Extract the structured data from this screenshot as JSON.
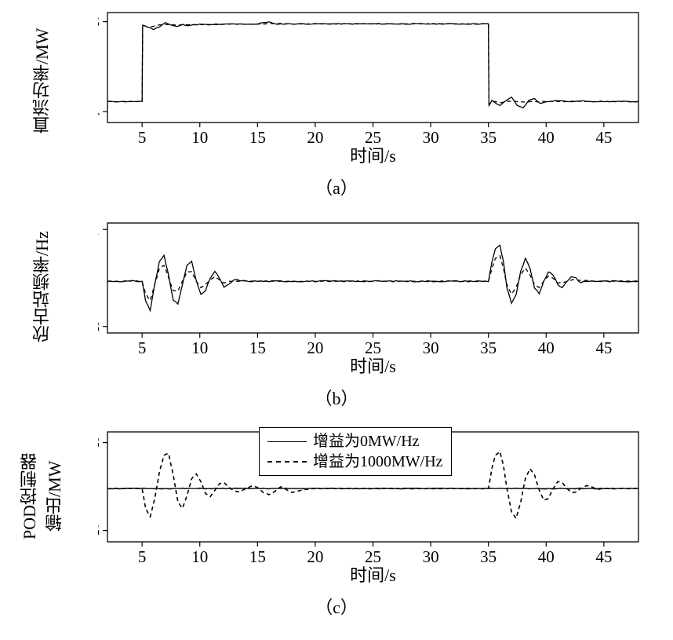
{
  "global": {
    "xaxis": {
      "label": "时间/s",
      "ticks": [
        5,
        10,
        15,
        20,
        25,
        30,
        35,
        40,
        45
      ],
      "xlim": [
        2,
        48
      ]
    },
    "line_color": "#000000",
    "axis_color": "#000000",
    "background": "#ffffff",
    "axis_linewidth": 1.3,
    "tick_fontsize": 21,
    "label_fontsize": 22
  },
  "panel_a": {
    "sublabel": "（a）",
    "ylabel": "直流功率/MW",
    "ylim": [
      100,
      1150
    ],
    "yticks": [
      204,
      1063
    ],
    "ytick_labels": [
      "204",
      "1063"
    ],
    "series_solid": {
      "name": "增益为0MW/Hz",
      "color": "#000000",
      "linewidth": 1.3,
      "xy": [
        [
          2,
          300
        ],
        [
          4.8,
          300
        ],
        [
          5,
          300
        ],
        [
          5.05,
          1030
        ],
        [
          5.3,
          1020
        ],
        [
          6,
          990
        ],
        [
          6.5,
          1015
        ],
        [
          7,
          1055
        ],
        [
          7.5,
          1030
        ],
        [
          8,
          1015
        ],
        [
          8.5,
          1035
        ],
        [
          9,
          1028
        ],
        [
          10,
          1038
        ],
        [
          11,
          1032
        ],
        [
          12,
          1038
        ],
        [
          13,
          1040
        ],
        [
          14,
          1040
        ],
        [
          15,
          1040
        ],
        [
          15.5,
          1055
        ],
        [
          16,
          1060
        ],
        [
          16.5,
          1040
        ],
        [
          18,
          1042
        ],
        [
          20,
          1042
        ],
        [
          25,
          1042
        ],
        [
          30,
          1042
        ],
        [
          34.9,
          1042
        ],
        [
          35,
          1042
        ],
        [
          35.05,
          260
        ],
        [
          35.3,
          310
        ],
        [
          36,
          260
        ],
        [
          36.5,
          310
        ],
        [
          37,
          340
        ],
        [
          37.5,
          260
        ],
        [
          38,
          240
        ],
        [
          38.5,
          310
        ],
        [
          39,
          330
        ],
        [
          39.5,
          280
        ],
        [
          40,
          300
        ],
        [
          41,
          310
        ],
        [
          42,
          300
        ],
        [
          43,
          305
        ],
        [
          45,
          300
        ],
        [
          48,
          300
        ]
      ]
    },
    "series_dashed": {
      "name": "增益为1000MW/Hz",
      "color": "#000000",
      "linewidth": 1.3,
      "dash": "5,4",
      "xy": [
        [
          2,
          300
        ],
        [
          4.8,
          300
        ],
        [
          5,
          300
        ],
        [
          5.05,
          1030
        ],
        [
          5.5,
          1010
        ],
        [
          6,
          1020
        ],
        [
          6.5,
          1030
        ],
        [
          7,
          1035
        ],
        [
          8,
          1030
        ],
        [
          9,
          1035
        ],
        [
          10,
          1035
        ],
        [
          12,
          1040
        ],
        [
          15,
          1040
        ],
        [
          16,
          1045
        ],
        [
          18,
          1042
        ],
        [
          25,
          1042
        ],
        [
          30,
          1042
        ],
        [
          34.9,
          1042
        ],
        [
          35,
          1042
        ],
        [
          35.05,
          280
        ],
        [
          35.5,
          300
        ],
        [
          36,
          290
        ],
        [
          37,
          305
        ],
        [
          38,
          295
        ],
        [
          39,
          300
        ],
        [
          41,
          300
        ],
        [
          45,
          300
        ],
        [
          48,
          300
        ]
      ]
    }
  },
  "panel_b": {
    "sublabel": "（b）",
    "ylabel": "欣古站频率/Hz",
    "ylim": [
      59.78,
      60.12
    ],
    "yticks": [
      59.8,
      60.1
    ],
    "ytick_labels": [
      "59.8",
      "60.1"
    ],
    "series_solid": {
      "color": "#000000",
      "linewidth": 1.3,
      "xy": [
        [
          2,
          59.94
        ],
        [
          4.5,
          59.94
        ],
        [
          5,
          59.94
        ],
        [
          5.3,
          59.88
        ],
        [
          5.7,
          59.85
        ],
        [
          6.1,
          59.93
        ],
        [
          6.5,
          60.0
        ],
        [
          6.9,
          60.02
        ],
        [
          7.3,
          59.96
        ],
        [
          7.7,
          59.88
        ],
        [
          8.1,
          59.87
        ],
        [
          8.5,
          59.93
        ],
        [
          8.9,
          59.99
        ],
        [
          9.3,
          60.0
        ],
        [
          9.7,
          59.94
        ],
        [
          10.1,
          59.9
        ],
        [
          10.5,
          59.91
        ],
        [
          10.9,
          59.95
        ],
        [
          11.3,
          59.97
        ],
        [
          11.7,
          59.95
        ],
        [
          12.1,
          59.92
        ],
        [
          12.5,
          59.93
        ],
        [
          13,
          59.945
        ],
        [
          14,
          59.94
        ],
        [
          15,
          59.94
        ],
        [
          16,
          59.94
        ],
        [
          18,
          59.94
        ],
        [
          22,
          59.94
        ],
        [
          28,
          59.94
        ],
        [
          34,
          59.94
        ],
        [
          35,
          59.94
        ],
        [
          35.3,
          60.0
        ],
        [
          35.6,
          60.04
        ],
        [
          36,
          60.05
        ],
        [
          36.3,
          60.0
        ],
        [
          36.6,
          59.92
        ],
        [
          37,
          59.87
        ],
        [
          37.4,
          59.9
        ],
        [
          37.8,
          59.97
        ],
        [
          38.2,
          60.01
        ],
        [
          38.6,
          59.98
        ],
        [
          39,
          59.92
        ],
        [
          39.4,
          59.9
        ],
        [
          39.8,
          59.94
        ],
        [
          40.2,
          59.97
        ],
        [
          40.6,
          59.96
        ],
        [
          41,
          59.93
        ],
        [
          41.4,
          59.92
        ],
        [
          41.8,
          59.94
        ],
        [
          42.2,
          59.955
        ],
        [
          42.6,
          59.95
        ],
        [
          43,
          59.935
        ],
        [
          43.5,
          59.94
        ],
        [
          44.5,
          59.94
        ],
        [
          46,
          59.94
        ],
        [
          48,
          59.94
        ]
      ]
    },
    "series_dashed": {
      "color": "#000000",
      "linewidth": 1.3,
      "dash": "5,4",
      "xy": [
        [
          2,
          59.94
        ],
        [
          4.5,
          59.94
        ],
        [
          5,
          59.94
        ],
        [
          5.3,
          59.9
        ],
        [
          5.7,
          59.88
        ],
        [
          6.1,
          59.93
        ],
        [
          6.5,
          59.98
        ],
        [
          6.9,
          59.99
        ],
        [
          7.3,
          59.95
        ],
        [
          7.7,
          59.91
        ],
        [
          8.1,
          59.91
        ],
        [
          8.5,
          59.94
        ],
        [
          8.9,
          59.97
        ],
        [
          9.3,
          59.97
        ],
        [
          9.7,
          59.94
        ],
        [
          10.1,
          59.92
        ],
        [
          10.5,
          59.93
        ],
        [
          10.9,
          59.945
        ],
        [
          11.3,
          59.955
        ],
        [
          11.7,
          59.945
        ],
        [
          12.1,
          59.935
        ],
        [
          12.5,
          59.94
        ],
        [
          14,
          59.94
        ],
        [
          18,
          59.94
        ],
        [
          25,
          59.94
        ],
        [
          34,
          59.94
        ],
        [
          35,
          59.94
        ],
        [
          35.3,
          59.98
        ],
        [
          35.6,
          60.01
        ],
        [
          36,
          60.02
        ],
        [
          36.3,
          59.98
        ],
        [
          36.6,
          59.93
        ],
        [
          37,
          59.9
        ],
        [
          37.4,
          59.92
        ],
        [
          37.8,
          59.96
        ],
        [
          38.2,
          59.98
        ],
        [
          38.6,
          59.96
        ],
        [
          39,
          59.93
        ],
        [
          39.4,
          59.92
        ],
        [
          39.8,
          59.94
        ],
        [
          40.2,
          59.955
        ],
        [
          40.6,
          59.95
        ],
        [
          41,
          59.935
        ],
        [
          41.4,
          59.935
        ],
        [
          41.8,
          59.94
        ],
        [
          42.5,
          59.945
        ],
        [
          44,
          59.94
        ],
        [
          48,
          59.94
        ]
      ]
    }
  },
  "panel_c": {
    "sublabel": "（c）",
    "ylabel": "POD控制器\n输出/MW",
    "ylim": [
      -160,
      170
    ],
    "yticks": [
      -126,
      138
    ],
    "ytick_labels": [
      "−126",
      "138"
    ],
    "zero_line": 0,
    "legend": {
      "solid": "增益为0MW/Hz",
      "dashed": "增益为1000MW/Hz"
    },
    "series_solid": {
      "color": "#000000",
      "linewidth": 1.3,
      "xy": [
        [
          2,
          0
        ],
        [
          48,
          0
        ]
      ]
    },
    "series_dashed": {
      "color": "#000000",
      "linewidth": 1.6,
      "dash": "5,4",
      "xy": [
        [
          2,
          0
        ],
        [
          4.8,
          0
        ],
        [
          5,
          0
        ],
        [
          5.3,
          -60
        ],
        [
          5.7,
          -85
        ],
        [
          6.1,
          -30
        ],
        [
          6.5,
          50
        ],
        [
          6.9,
          100
        ],
        [
          7.3,
          105
        ],
        [
          7.7,
          40
        ],
        [
          8.1,
          -40
        ],
        [
          8.5,
          -60
        ],
        [
          8.9,
          -20
        ],
        [
          9.3,
          30
        ],
        [
          9.7,
          45
        ],
        [
          10.1,
          20
        ],
        [
          10.5,
          -15
        ],
        [
          10.9,
          -25
        ],
        [
          11.3,
          -5
        ],
        [
          11.7,
          15
        ],
        [
          12.1,
          18
        ],
        [
          12.5,
          5
        ],
        [
          13,
          -8
        ],
        [
          13.5,
          -10
        ],
        [
          14,
          0
        ],
        [
          14.5,
          8
        ],
        [
          15,
          3
        ],
        [
          15.5,
          -12
        ],
        [
          16,
          -18
        ],
        [
          16.5,
          -8
        ],
        [
          17,
          5
        ],
        [
          17.5,
          -3
        ],
        [
          18,
          -12
        ],
        [
          18.5,
          -8
        ],
        [
          19,
          -4
        ],
        [
          19.5,
          -2
        ],
        [
          20,
          0
        ],
        [
          22,
          0
        ],
        [
          26,
          0
        ],
        [
          30,
          0
        ],
        [
          34.8,
          0
        ],
        [
          35,
          0
        ],
        [
          35.3,
          60
        ],
        [
          35.6,
          100
        ],
        [
          36,
          110
        ],
        [
          36.3,
          70
        ],
        [
          36.6,
          0
        ],
        [
          37,
          -70
        ],
        [
          37.4,
          -90
        ],
        [
          37.8,
          -40
        ],
        [
          38.2,
          30
        ],
        [
          38.6,
          60
        ],
        [
          39,
          40
        ],
        [
          39.4,
          -5
        ],
        [
          39.8,
          -35
        ],
        [
          40.2,
          -30
        ],
        [
          40.6,
          0
        ],
        [
          41,
          20
        ],
        [
          41.4,
          18
        ],
        [
          41.8,
          0
        ],
        [
          42.2,
          -12
        ],
        [
          42.6,
          -10
        ],
        [
          43,
          0
        ],
        [
          43.5,
          8
        ],
        [
          44,
          5
        ],
        [
          44.5,
          -3
        ],
        [
          45,
          0
        ],
        [
          46,
          0
        ],
        [
          48,
          0
        ]
      ]
    }
  }
}
